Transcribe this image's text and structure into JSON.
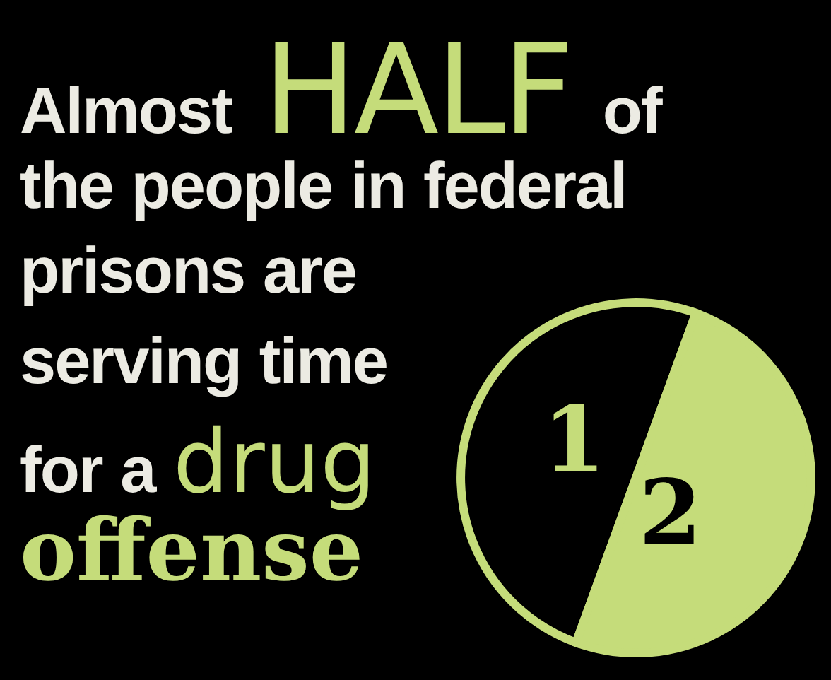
{
  "chart_data": {
    "type": "pie",
    "title": "Almost HALF of the people in federal prisons are serving time for a drug offense",
    "categories": [
      null,
      null
    ],
    "values": [
      50,
      50
    ],
    "colors": [
      "#000000",
      "#c5dc7a"
    ],
    "annotations": [
      "1",
      "2"
    ]
  }
}
